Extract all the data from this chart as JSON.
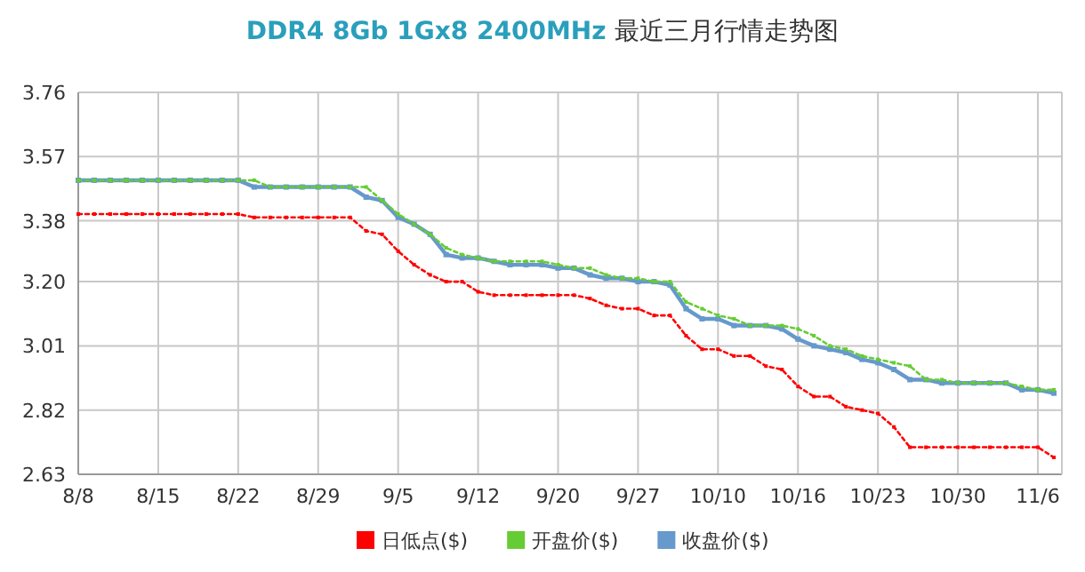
{
  "chart_data": {
    "type": "line",
    "title": "DDR4 8Gb 1Gx8 2400MHz 最近三月行情走势图",
    "categories": [
      "8/8",
      null,
      null,
      null,
      null,
      "8/15",
      null,
      null,
      null,
      null,
      "8/22",
      null,
      null,
      null,
      null,
      "8/29",
      null,
      null,
      null,
      null,
      "9/5",
      null,
      null,
      null,
      null,
      "9/12",
      null,
      null,
      null,
      null,
      "9/20",
      null,
      null,
      null,
      null,
      "9/27",
      null,
      null,
      null,
      null,
      "10/10",
      null,
      null,
      null,
      null,
      "10/16",
      null,
      null,
      null,
      null,
      "10/23",
      null,
      null,
      null,
      null,
      "10/30",
      null,
      null,
      null,
      null,
      "11/6",
      null
    ],
    "ylim": [
      2.63,
      3.76
    ],
    "yticks": [
      2.63,
      2.82,
      3.01,
      {
        "value": 3.2,
        "label": "3.20"
      },
      3.38,
      3.57,
      3.76
    ],
    "grid": true,
    "legend": "bottom",
    "marker": "square",
    "series": [
      {
        "name": "日低点($)",
        "color": "#ff0000",
        "line_style": "dotted",
        "values": [
          3.4,
          3.4,
          3.4,
          3.4,
          3.4,
          3.4,
          3.4,
          3.4,
          3.4,
          3.4,
          3.4,
          3.39,
          3.39,
          3.39,
          3.39,
          3.39,
          3.39,
          3.39,
          3.35,
          3.34,
          3.29,
          3.25,
          3.22,
          3.2,
          3.2,
          3.17,
          3.16,
          3.16,
          3.16,
          3.16,
          3.16,
          3.16,
          3.15,
          3.13,
          3.12,
          3.12,
          3.1,
          3.1,
          3.04,
          3.0,
          3.0,
          2.98,
          2.98,
          2.95,
          2.94,
          2.89,
          2.86,
          2.86,
          2.83,
          2.82,
          2.81,
          2.77,
          2.71,
          2.71,
          2.71,
          2.71,
          2.71,
          2.71,
          2.71,
          2.71,
          2.71,
          2.68
        ]
      },
      {
        "name": "开盘价($)",
        "color": "#66cc33",
        "line_style": "dotted",
        "values": [
          3.5,
          3.5,
          3.5,
          3.5,
          3.5,
          3.5,
          3.5,
          3.5,
          3.5,
          3.5,
          3.5,
          3.5,
          3.48,
          3.48,
          3.48,
          3.48,
          3.48,
          3.48,
          3.48,
          3.44,
          3.4,
          3.37,
          3.34,
          3.3,
          3.28,
          3.27,
          3.26,
          3.26,
          3.26,
          3.26,
          3.25,
          3.24,
          3.24,
          3.22,
          3.21,
          3.21,
          3.2,
          3.2,
          3.14,
          3.12,
          3.1,
          3.09,
          3.07,
          3.07,
          3.07,
          3.06,
          3.04,
          3.01,
          3.0,
          2.98,
          2.97,
          2.96,
          2.95,
          2.91,
          2.91,
          2.9,
          2.9,
          2.9,
          2.9,
          2.89,
          2.88,
          2.88
        ]
      },
      {
        "name": "收盘价($)",
        "color": "#6699cc",
        "line_style": "solid",
        "values": [
          3.5,
          3.5,
          3.5,
          3.5,
          3.5,
          3.5,
          3.5,
          3.5,
          3.5,
          3.5,
          3.5,
          3.48,
          3.48,
          3.48,
          3.48,
          3.48,
          3.48,
          3.48,
          3.45,
          3.44,
          3.39,
          3.37,
          3.34,
          3.28,
          3.27,
          3.27,
          3.26,
          3.25,
          3.25,
          3.25,
          3.24,
          3.24,
          3.22,
          3.21,
          3.21,
          3.2,
          3.2,
          3.19,
          3.12,
          3.09,
          3.09,
          3.07,
          3.07,
          3.07,
          3.06,
          3.03,
          3.01,
          3.0,
          2.99,
          2.97,
          2.96,
          2.94,
          2.91,
          2.91,
          2.9,
          2.9,
          2.9,
          2.9,
          2.9,
          2.88,
          2.88,
          2.87
        ]
      }
    ]
  }
}
